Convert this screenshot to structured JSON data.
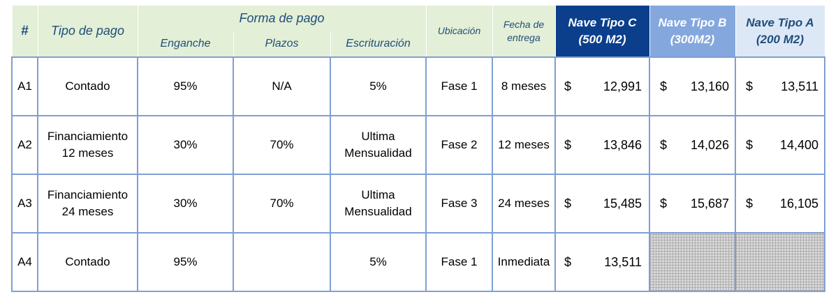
{
  "header": {
    "hash": "#",
    "tipo_pago": "Tipo de pago",
    "forma_pago": "Forma de pago",
    "enganche": "Enganche",
    "plazos": "Plazos",
    "escrituracion": "Escrituración",
    "ubicacion": "Ubicación",
    "fecha_entrega_line1": "Fecha de",
    "fecha_entrega_line2": "entrega",
    "nave_c_line1": "Nave Tipo C",
    "nave_c_line2": "(500 M2)",
    "nave_b_line1": "Nave Tipo B",
    "nave_b_line2": "(300M2)",
    "nave_a_line1": "Nave Tipo A",
    "nave_a_line2": "(200 M2)"
  },
  "currency_symbol": "$",
  "rows": [
    {
      "id": "A1",
      "tipo_line1": "Contado",
      "tipo_line2": "",
      "enganche": "95%",
      "plazos": "N/A",
      "escrituracion_line1": "5%",
      "escrituracion_line2": "",
      "ubicacion": "Fase 1",
      "fecha": "8 meses",
      "nave_c": "12,991",
      "nave_b": "13,160",
      "nave_a": "13,511"
    },
    {
      "id": "A2",
      "tipo_line1": "Financiamiento",
      "tipo_line2": "12 meses",
      "enganche": "30%",
      "plazos": "70%",
      "escrituracion_line1": "Ultima",
      "escrituracion_line2": "Mensualidad",
      "ubicacion": "Fase 2",
      "fecha": "12 meses",
      "nave_c": "13,846",
      "nave_b": "14,026",
      "nave_a": "14,400"
    },
    {
      "id": "A3",
      "tipo_line1": "Financiamiento",
      "tipo_line2": "24 meses",
      "enganche": "30%",
      "plazos": "70%",
      "escrituracion_line1": "Ultima",
      "escrituracion_line2": "Mensualidad",
      "ubicacion": "Fase 3",
      "fecha": "24 meses",
      "nave_c": "15,485",
      "nave_b": "15,687",
      "nave_a": "16,105"
    },
    {
      "id": "A4",
      "tipo_line1": "Contado",
      "tipo_line2": "",
      "enganche": "95%",
      "plazos": "",
      "escrituracion_line1": "5%",
      "escrituracion_line2": "",
      "ubicacion": "Fase 1",
      "fecha": "Inmediata",
      "nave_c": "13,511",
      "nave_b": "",
      "nave_a": ""
    }
  ],
  "colors": {
    "header_green": "#e3efd6",
    "header_text": "#1f4e79",
    "nave_c_bg": "#0b3f8c",
    "nave_b_bg": "#84a8de",
    "nave_a_bg": "#dde8f7",
    "grid_border": "#7f9ed4"
  }
}
